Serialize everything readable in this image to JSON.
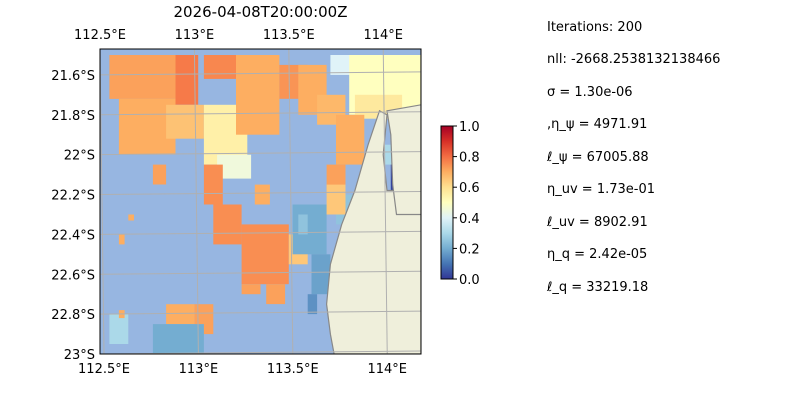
{
  "chart_data": {
    "type": "heatmap",
    "title": "2026-04-08T20:00:00Z",
    "x_ticks": [
      "112.5°E",
      "113°E",
      "113.5°E",
      "114°E"
    ],
    "x_tick_values": [
      112.5,
      113.0,
      113.5,
      114.0
    ],
    "y_ticks": [
      "21.6°S",
      "21.8°S",
      "22°S",
      "22.2°S",
      "22.4°S",
      "22.6°S",
      "22.8°S",
      "23°S"
    ],
    "y_tick_values": [
      -21.6,
      -21.8,
      -22.0,
      -22.2,
      -22.4,
      -22.6,
      -22.8,
      -23.0
    ],
    "xlim": [
      112.5,
      114.2
    ],
    "ylim": [
      -23.0,
      -21.47
    ],
    "grid": true,
    "colorbar": {
      "min": 0.0,
      "max": 1.0,
      "ticks": [
        "0.0",
        "0.2",
        "0.4",
        "0.6",
        "0.8",
        "1.0"
      ],
      "tick_values": [
        0.0,
        0.2,
        0.4,
        0.6,
        0.8,
        1.0
      ],
      "colormap": [
        "#313695",
        "#4575b4",
        "#74add1",
        "#abd9e9",
        "#e0f3f8",
        "#ffffbf",
        "#fee090",
        "#fdae61",
        "#f46d43",
        "#d73027",
        "#a50026"
      ]
    },
    "colors": {
      "ocean": "#97b6e1",
      "land": "#efefdb",
      "coast": "#888888",
      "grid": "#b0b0b0"
    },
    "regions": [
      {
        "lon": [
          112.55,
          112.9
        ],
        "lat": [
          -21.72,
          -21.5
        ],
        "value": 0.72
      },
      {
        "lon": [
          112.9,
          113.02
        ],
        "lat": [
          -21.75,
          -21.5
        ],
        "value": 0.78
      },
      {
        "lon": [
          113.05,
          113.22
        ],
        "lat": [
          -21.62,
          -21.5
        ],
        "value": 0.76
      },
      {
        "lon": [
          112.6,
          112.9
        ],
        "lat": [
          -22.0,
          -21.72
        ],
        "value": 0.7
      },
      {
        "lon": [
          112.85,
          113.05
        ],
        "lat": [
          -21.92,
          -21.75
        ],
        "value": 0.66
      },
      {
        "lon": [
          113.05,
          113.28
        ],
        "lat": [
          -22.05,
          -21.75
        ],
        "value": 0.55
      },
      {
        "lon": [
          113.12,
          113.3
        ],
        "lat": [
          -22.12,
          -22.0
        ],
        "value": 0.45
      },
      {
        "lon": [
          113.22,
          113.45
        ],
        "lat": [
          -21.9,
          -21.5
        ],
        "value": 0.7
      },
      {
        "lon": [
          113.45,
          113.6
        ],
        "lat": [
          -21.72,
          -21.55
        ],
        "value": 0.74
      },
      {
        "lon": [
          113.55,
          113.7
        ],
        "lat": [
          -21.8,
          -21.55
        ],
        "value": 0.7
      },
      {
        "lon": [
          113.65,
          113.8
        ],
        "lat": [
          -21.85,
          -21.7
        ],
        "value": 0.68
      },
      {
        "lon": [
          113.72,
          113.98
        ],
        "lat": [
          -21.6,
          -21.5
        ],
        "value": 0.4
      },
      {
        "lon": [
          113.82,
          114.2
        ],
        "lat": [
          -21.8,
          -21.5
        ],
        "value": 0.5
      },
      {
        "lon": [
          113.85,
          114.1
        ],
        "lat": [
          -21.82,
          -21.7
        ],
        "value": 0.57
      },
      {
        "lon": [
          113.75,
          113.9
        ],
        "lat": [
          -22.05,
          -21.8
        ],
        "value": 0.7
      },
      {
        "lon": [
          113.7,
          113.8
        ],
        "lat": [
          -22.2,
          -22.05
        ],
        "value": 0.72
      },
      {
        "lon": [
          112.78,
          112.85
        ],
        "lat": [
          -22.15,
          -22.05
        ],
        "value": 0.72
      },
      {
        "lon": [
          113.05,
          113.15
        ],
        "lat": [
          -22.25,
          -22.05
        ],
        "value": 0.75
      },
      {
        "lon": [
          113.1,
          113.25
        ],
        "lat": [
          -22.45,
          -22.25
        ],
        "value": 0.75
      },
      {
        "lon": [
          113.32,
          113.4
        ],
        "lat": [
          -22.25,
          -22.15
        ],
        "value": 0.7
      },
      {
        "lon": [
          112.65,
          112.68
        ],
        "lat": [
          -22.33,
          -22.3
        ],
        "value": 0.7
      },
      {
        "lon": [
          112.6,
          112.63
        ],
        "lat": [
          -22.45,
          -22.4
        ],
        "value": 0.7
      },
      {
        "lon": [
          113.25,
          113.5
        ],
        "lat": [
          -22.65,
          -22.35
        ],
        "value": 0.75
      },
      {
        "lon": [
          113.5,
          113.6
        ],
        "lat": [
          -22.55,
          -22.4
        ],
        "value": 0.65
      },
      {
        "lon": [
          113.25,
          113.35
        ],
        "lat": [
          -22.7,
          -22.65
        ],
        "value": 0.72
      },
      {
        "lon": [
          113.38,
          113.48
        ],
        "lat": [
          -22.75,
          -22.65
        ],
        "value": 0.72
      },
      {
        "lon": [
          113.52,
          113.7
        ],
        "lat": [
          -22.5,
          -22.25
        ],
        "value": 0.2
      },
      {
        "lon": [
          113.62,
          113.72
        ],
        "lat": [
          -22.7,
          -22.5
        ],
        "value": 0.18
      },
      {
        "lon": [
          113.6,
          113.65
        ],
        "lat": [
          -22.8,
          -22.7
        ],
        "value": 0.15
      },
      {
        "lon": [
          113.55,
          113.6
        ],
        "lat": [
          -22.4,
          -22.3
        ],
        "value": 0.25
      },
      {
        "lon": [
          113.75,
          113.85
        ],
        "lat": [
          -22.35,
          -22.2
        ],
        "value": 0.25
      },
      {
        "lon": [
          113.7,
          113.8
        ],
        "lat": [
          -22.3,
          -22.15
        ],
        "value": 0.65
      },
      {
        "lon": [
          113.0,
          113.1
        ],
        "lat": [
          -22.9,
          -22.75
        ],
        "value": 0.72
      },
      {
        "lon": [
          112.85,
          113.0
        ],
        "lat": [
          -22.85,
          -22.75
        ],
        "value": 0.7
      },
      {
        "lon": [
          112.78,
          113.05
        ],
        "lat": [
          -23.0,
          -22.85
        ],
        "value": 0.2
      },
      {
        "lon": [
          112.55,
          112.65
        ],
        "lat": [
          -22.95,
          -22.8
        ],
        "value": 0.3
      },
      {
        "lon": [
          112.6,
          112.63
        ],
        "lat": [
          -22.82,
          -22.78
        ],
        "value": 0.7
      },
      {
        "lon": [
          113.97,
          114.05
        ],
        "lat": [
          -22.05,
          -21.95
        ],
        "value": 0.3
      },
      {
        "lon": [
          114.04,
          114.12
        ],
        "lat": [
          -22.2,
          -22.05
        ],
        "value": 0.02
      }
    ],
    "land_polygon": [
      [
        114.2,
        -21.47
      ],
      [
        114.2,
        -22.18
      ],
      [
        114.02,
        -22.18
      ],
      [
        114.0,
        -22.0
      ],
      [
        114.02,
        -21.8
      ],
      [
        113.98,
        -21.78
      ],
      [
        113.92,
        -21.95
      ],
      [
        113.85,
        -22.18
      ],
      [
        113.78,
        -22.35
      ],
      [
        113.72,
        -22.55
      ],
      [
        113.7,
        -22.75
      ],
      [
        113.72,
        -22.9
      ],
      [
        113.74,
        -23.0
      ],
      [
        114.2,
        -23.0
      ]
    ],
    "land_polygon_east": [
      [
        114.02,
        -21.78
      ],
      [
        114.2,
        -21.75
      ],
      [
        114.2,
        -22.3
      ],
      [
        114.07,
        -22.3
      ],
      [
        114.05,
        -22.15
      ],
      [
        114.04,
        -21.9
      ]
    ]
  },
  "stats": [
    "Iterations: 200",
    "nll: -2668.2538132138466",
    "σ = 1.30e-06",
    ",η_ψ = 4971.91",
    "ℓ_ψ = 67005.88",
    "η_uv = 1.73e-01",
    "ℓ_uv = 8902.91",
    "η_q = 2.42e-05",
    "ℓ_q = 33219.18"
  ]
}
